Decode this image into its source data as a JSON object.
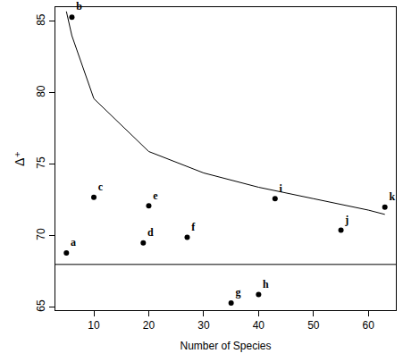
{
  "chart_data": {
    "type": "scatter",
    "x_label": "Number of Species",
    "y_label": "Δ⁺",
    "x": [
      5,
      6,
      10,
      19,
      20,
      27,
      35,
      40,
      43,
      55,
      63
    ],
    "values": [
      68.8,
      85.3,
      72.7,
      69.5,
      72.1,
      69.9,
      65.3,
      65.9,
      72.6,
      70.4,
      72.0
    ],
    "point_labels": [
      "a",
      "b",
      "c",
      "d",
      "e",
      "f",
      "g",
      "h",
      "i",
      "j",
      "k"
    ],
    "color": "#000000",
    "marker": "circle",
    "series": [
      {
        "type": "line",
        "color": "#000000",
        "line_style": "solid",
        "x": [
          5,
          6,
          10,
          20,
          30,
          40,
          50,
          60,
          63
        ],
        "values": [
          85.7,
          84.0,
          79.6,
          75.9,
          74.4,
          73.4,
          72.6,
          71.8,
          71.5
        ]
      }
    ],
    "hline": 68.0,
    "xlim": [
      3,
      65
    ],
    "ylim": [
      64.8,
      86
    ],
    "xticks": [
      10,
      20,
      30,
      40,
      50,
      60
    ],
    "yticks": [
      65,
      70,
      75,
      80,
      85
    ],
    "grid": false
  }
}
